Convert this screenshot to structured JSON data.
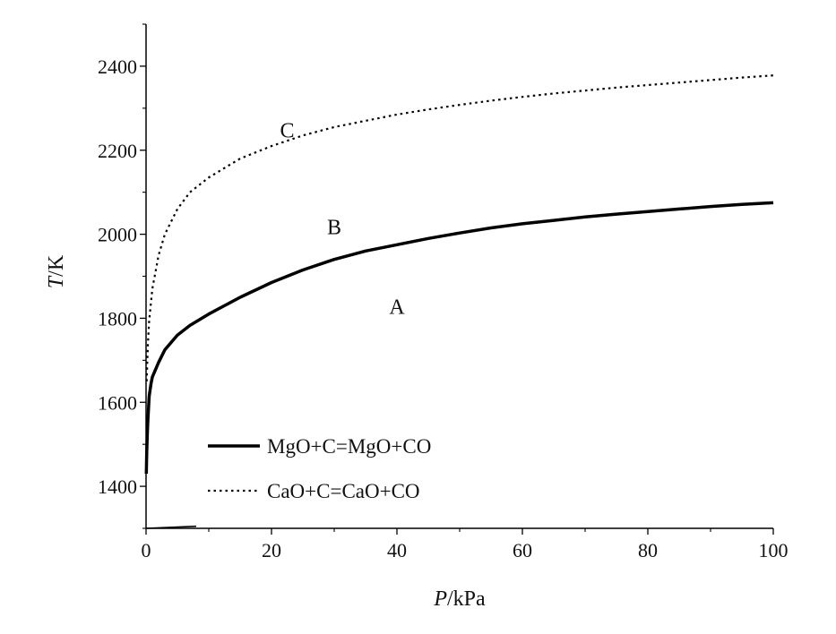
{
  "chart_data": {
    "type": "line",
    "xlabel_italic": "P",
    "xlabel_unit": "/kPa",
    "ylabel_italic": "T",
    "ylabel_unit": "/K",
    "xlim": [
      0,
      100
    ],
    "ylim": [
      1300,
      2500
    ],
    "xticks": [
      0,
      20,
      40,
      60,
      80,
      100
    ],
    "yticks": [
      1400,
      1600,
      1800,
      2000,
      2200,
      2400
    ],
    "grid": false,
    "legend_position": "lower-left",
    "series": [
      {
        "name": "MgO+C=MgO+CO",
        "style": "solid",
        "color": "#000000",
        "x": [
          0.05,
          0.1,
          0.2,
          0.3,
          0.5,
          0.8,
          1,
          2,
          3,
          5,
          7,
          10,
          15,
          20,
          25,
          30,
          35,
          40,
          45,
          50,
          55,
          60,
          65,
          70,
          75,
          80,
          85,
          90,
          95,
          100
        ],
        "y": [
          1430,
          1475,
          1525,
          1560,
          1615,
          1645,
          1660,
          1695,
          1725,
          1760,
          1783,
          1810,
          1850,
          1885,
          1915,
          1940,
          1960,
          1975,
          1990,
          2003,
          2015,
          2025,
          2033,
          2041,
          2048,
          2054,
          2060,
          2066,
          2071,
          2075
        ]
      },
      {
        "name": "CaO+C=CaO+CO",
        "style": "dotted",
        "color": "#000000",
        "x": [
          0.1,
          0.2,
          0.3,
          0.5,
          1,
          2,
          3,
          5,
          7,
          10,
          15,
          20,
          25,
          30,
          35,
          40,
          45,
          50,
          55,
          60,
          65,
          70,
          75,
          80,
          85,
          90,
          95,
          100
        ],
        "y": [
          1650,
          1700,
          1740,
          1795,
          1870,
          1950,
          2000,
          2060,
          2100,
          2135,
          2180,
          2210,
          2235,
          2255,
          2270,
          2285,
          2297,
          2308,
          2318,
          2327,
          2335,
          2342,
          2349,
          2355,
          2361,
          2367,
          2373,
          2378
        ]
      },
      {
        "name": "",
        "style": "solid-thin",
        "color": "#000000",
        "x": [
          0,
          8
        ],
        "y": [
          1300,
          1305
        ]
      }
    ],
    "annotations": [
      {
        "text": "A",
        "x": 40,
        "y": 1810
      },
      {
        "text": "B",
        "x": 30,
        "y": 2000
      },
      {
        "text": "C",
        "x": 22.5,
        "y": 2230
      }
    ]
  }
}
